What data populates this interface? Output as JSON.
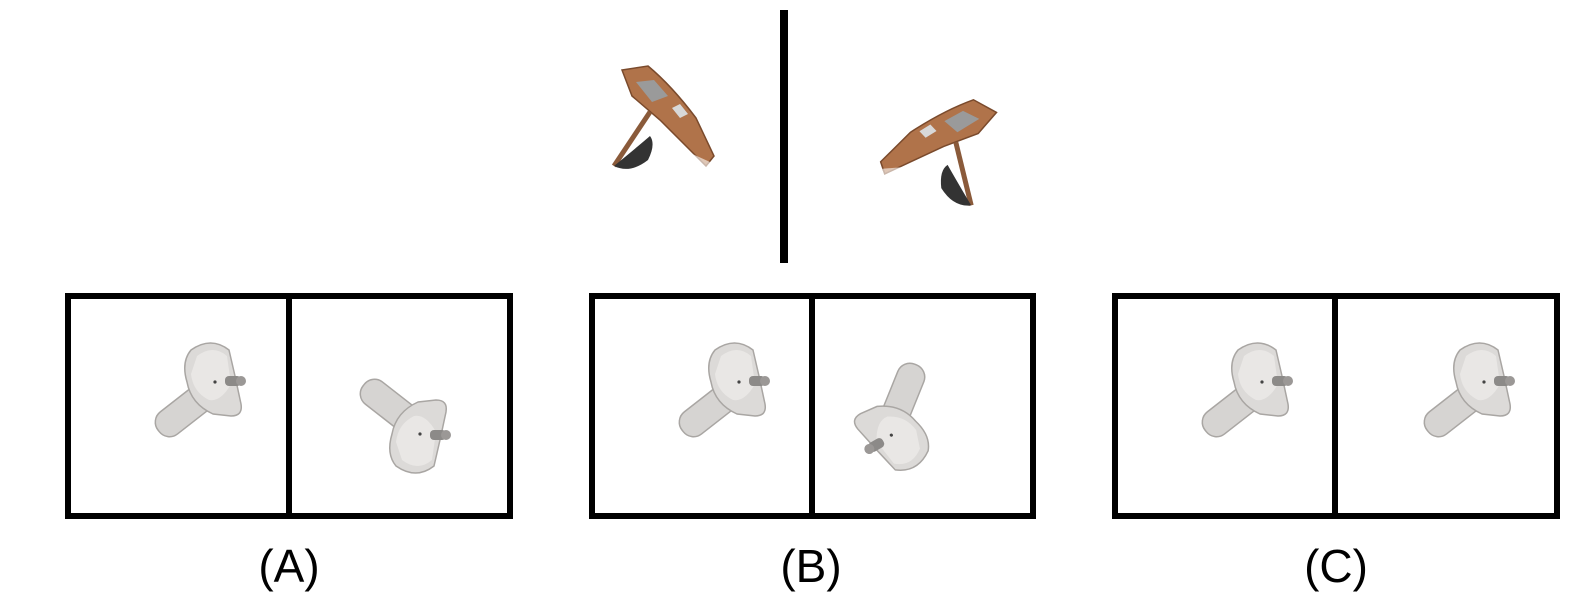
{
  "reference": {
    "left_image": "ship-hull-fragment-view-1",
    "right_image": "ship-hull-fragment-view-2"
  },
  "options": [
    {
      "label": "(A)",
      "left_image": "pedestal-sink-view-1",
      "right_image": "pedestal-sink-view-flipped"
    },
    {
      "label": "(B)",
      "left_image": "pedestal-sink-view-1",
      "right_image": "pedestal-sink-view-rotated"
    },
    {
      "label": "(C)",
      "left_image": "pedestal-sink-view-1",
      "right_image": "pedestal-sink-view-1-copy"
    }
  ],
  "colors": {
    "frame": "#000000",
    "ship_wood": "#b0734a",
    "ship_dark": "#333333",
    "sink_body": "#d9d7d5",
    "sink_shadow": "#a9a6a3"
  }
}
